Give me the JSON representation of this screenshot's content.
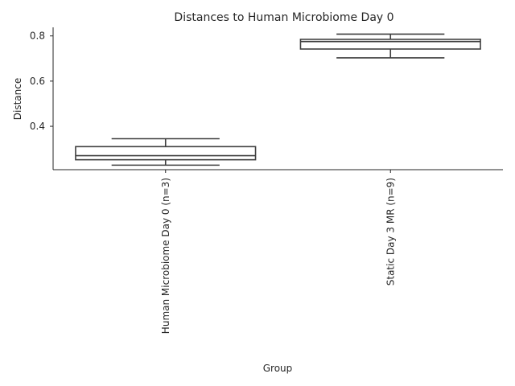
{
  "chart_data": {
    "type": "box",
    "title": "Distances to Human Microbiome Day 0",
    "xlabel": "Group",
    "ylabel": "Distance",
    "categories": [
      "Human Microbiome Day 0 (n=3)",
      "Static Day 3 MR (n=9)"
    ],
    "boxes": [
      {
        "whisker_low": 0.228,
        "q1": 0.252,
        "median": 0.27,
        "q3": 0.31,
        "whisker_high": 0.345
      },
      {
        "whisker_low": 0.703,
        "q1": 0.742,
        "median": 0.775,
        "q3": 0.785,
        "whisker_high": 0.808
      }
    ],
    "yticks": [
      "0.4",
      "0.6",
      "0.8"
    ],
    "ylim": [
      0.208,
      0.838
    ],
    "grid": false,
    "box_color": "#ffffff",
    "line_color": "#3f3f3f"
  }
}
